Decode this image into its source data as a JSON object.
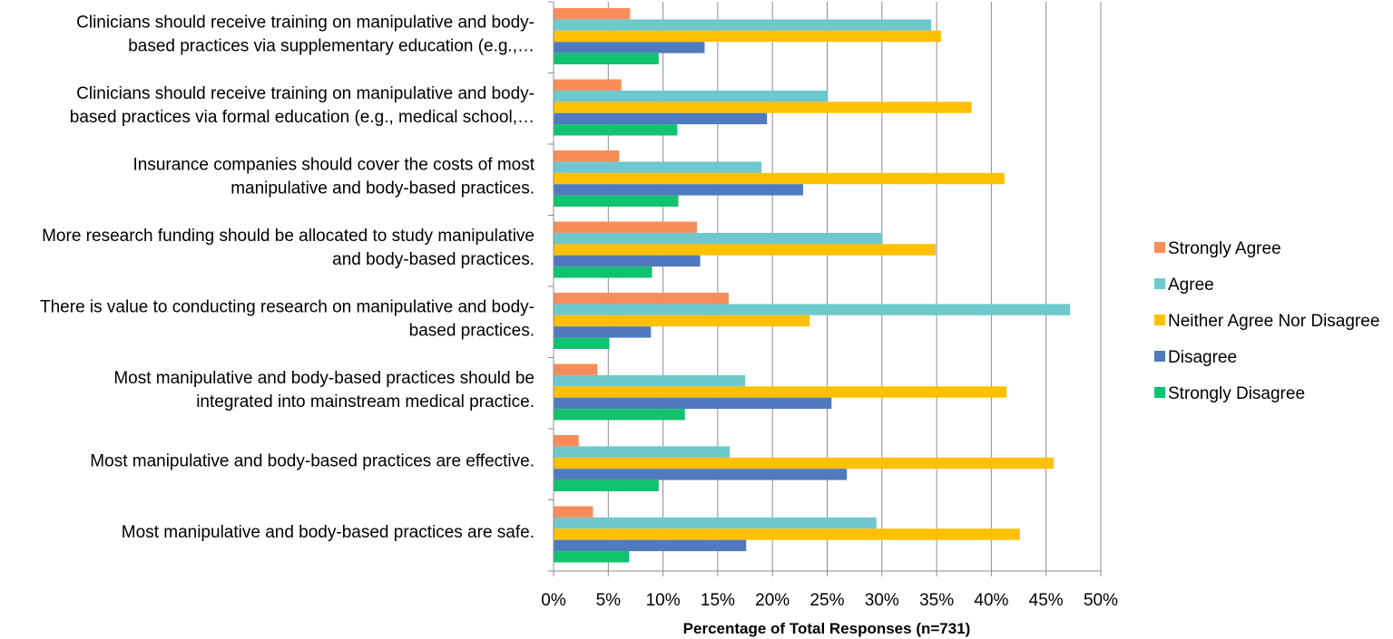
{
  "chart_data": {
    "type": "bar",
    "orientation": "horizontal",
    "xlabel": "Percentage of Total Responses (n=731)",
    "ylabel": "",
    "xlim": [
      0,
      50
    ],
    "x_ticks": [
      0,
      5,
      10,
      15,
      20,
      25,
      30,
      35,
      40,
      45,
      50
    ],
    "tick_format_suffix": "%",
    "grid": true,
    "legend_position": "right",
    "categories": [
      {
        "lines": [
          "Clinicians should receive training on manipulative and body-",
          "based practices via supplementary education (e.g.,…"
        ]
      },
      {
        "lines": [
          "Clinicians should receive training on manipulative and body-",
          "based practices via formal education (e.g., medical school,…"
        ]
      },
      {
        "lines": [
          "Insurance companies should cover the costs of most",
          "manipulative and body-based practices."
        ]
      },
      {
        "lines": [
          "More research funding should be allocated to study manipulative",
          "and body-based practices."
        ]
      },
      {
        "lines": [
          "There is value to conducting research on manipulative and body-",
          "based practices."
        ]
      },
      {
        "lines": [
          "Most manipulative and body-based practices should be",
          "integrated into mainstream medical practice."
        ]
      },
      {
        "lines": [
          "Most manipulative and body-based practices are effective."
        ]
      },
      {
        "lines": [
          "Most manipulative and body-based practices are safe."
        ]
      }
    ],
    "series": [
      {
        "name": "Strongly Agree",
        "color": "#F98D59",
        "values": [
          7.0,
          6.2,
          6.0,
          13.1,
          16.0,
          4.0,
          2.3,
          3.6
        ]
      },
      {
        "name": "Agree",
        "color": "#6EC8CC",
        "values": [
          34.5,
          25.0,
          19.0,
          30.0,
          47.2,
          17.5,
          16.1,
          29.5
        ]
      },
      {
        "name": "Neither Agree Nor Disagree",
        "color": "#FEC000",
        "values": [
          35.4,
          38.2,
          41.2,
          34.9,
          23.4,
          41.4,
          45.7,
          42.6
        ]
      },
      {
        "name": "Disagree",
        "color": "#4F7BBE",
        "values": [
          13.8,
          19.5,
          22.8,
          13.4,
          8.9,
          25.4,
          26.8,
          17.6
        ]
      },
      {
        "name": "Strongly Disagree",
        "color": "#11C26F",
        "values": [
          9.6,
          11.3,
          11.4,
          9.0,
          5.1,
          12.0,
          9.6,
          6.9
        ]
      }
    ]
  }
}
